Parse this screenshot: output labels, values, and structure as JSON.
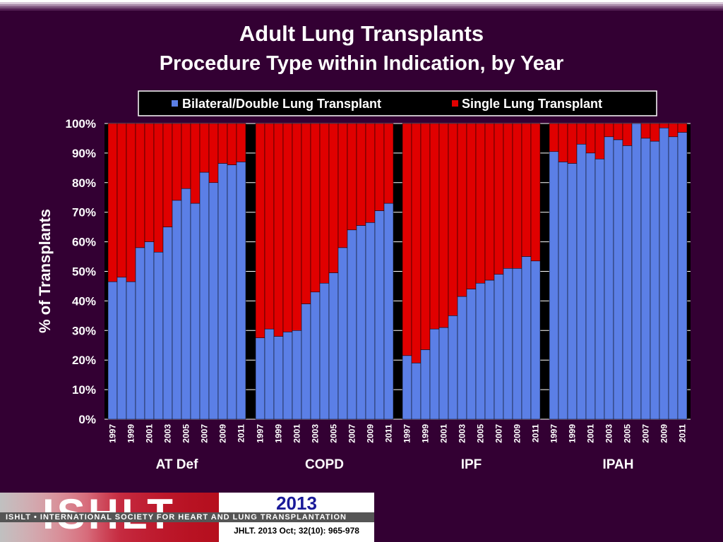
{
  "header": {
    "title": "Adult Lung Transplants",
    "subtitle": "Procedure Type within Indication, by Year"
  },
  "colors": {
    "background": "#330033",
    "bilateral": "#5b7fe6",
    "single": "#e00000"
  },
  "chart_data": {
    "type": "bar",
    "stacked": true,
    "ylabel": "% of Transplants",
    "ylim": [
      0,
      100
    ],
    "yticks": [
      "0%",
      "10%",
      "20%",
      "30%",
      "40%",
      "50%",
      "60%",
      "70%",
      "80%",
      "90%",
      "100%"
    ],
    "legend": {
      "position": "top",
      "entries": [
        "Bilateral/Double Lung Transplant",
        "Single Lung Transplant"
      ]
    },
    "years": [
      "1997",
      "1998",
      "1999",
      "2000",
      "2001",
      "2002",
      "2003",
      "2004",
      "2005",
      "2006",
      "2007",
      "2008",
      "2009",
      "2010",
      "2011"
    ],
    "year_tick_labels": [
      "1997",
      "1999",
      "2001",
      "2003",
      "2005",
      "2007",
      "2009",
      "2011"
    ],
    "groups": [
      {
        "name": "AT Def",
        "bilateral": [
          46.5,
          48,
          46.5,
          58,
          60,
          56.5,
          65,
          74,
          78,
          73,
          83.5,
          80,
          86.5,
          86,
          87
        ]
      },
      {
        "name": "COPD",
        "bilateral": [
          27.5,
          30.5,
          28,
          29.5,
          30,
          39,
          43,
          46,
          49.5,
          58,
          64,
          65.5,
          66.5,
          70.5,
          73
        ]
      },
      {
        "name": "IPF",
        "bilateral": [
          21.5,
          19,
          23.5,
          30.5,
          31,
          35,
          41.5,
          44,
          46,
          47,
          49,
          51,
          51,
          55,
          53.5
        ]
      },
      {
        "name": "IPAH",
        "bilateral": [
          90.5,
          87,
          86.5,
          93,
          90,
          88,
          95.5,
          94.5,
          92.5,
          100,
          95,
          94,
          98.5,
          95.5,
          97
        ]
      }
    ],
    "series": [
      {
        "name": "Bilateral/Double Lung Transplant"
      },
      {
        "name": "Single Lung Transplant"
      }
    ]
  },
  "footer": {
    "logo_text": "ISHLT",
    "society": "ISHLT • INTERNATIONAL SOCIETY FOR HEART AND LUNG TRANSPLANTATION",
    "year": "2013",
    "citation": "JHLT. 2013 Oct; 32(10): 965-978"
  }
}
